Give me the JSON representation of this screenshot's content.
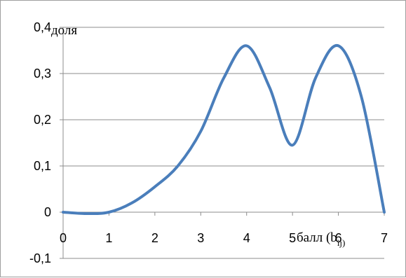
{
  "chart_data": {
    "type": "line",
    "title": "",
    "ylabel": "доля",
    "xlabel_main": "балл (b",
    "xlabel_sub": "ij)",
    "x": [
      0,
      0.5,
      1,
      1.5,
      2,
      2.5,
      3,
      3.5,
      4,
      4.5,
      5,
      5.5,
      6,
      6.5,
      7
    ],
    "y": [
      0,
      -0.003,
      0,
      0.02,
      0.055,
      0.1,
      0.175,
      0.29,
      0.36,
      0.27,
      0.145,
      0.29,
      0.36,
      0.25,
      0
    ],
    "xlim": [
      0,
      7
    ],
    "ylim": [
      -0.1,
      0.4
    ],
    "x_ticks": [
      "0",
      "1",
      "2",
      "3",
      "4",
      "5",
      "6",
      "7"
    ],
    "y_ticks": [
      "-0,1",
      "0",
      "0,1",
      "0,2",
      "0,3",
      "0,4"
    ],
    "grid": true,
    "line_color": "#4a7ebb"
  }
}
